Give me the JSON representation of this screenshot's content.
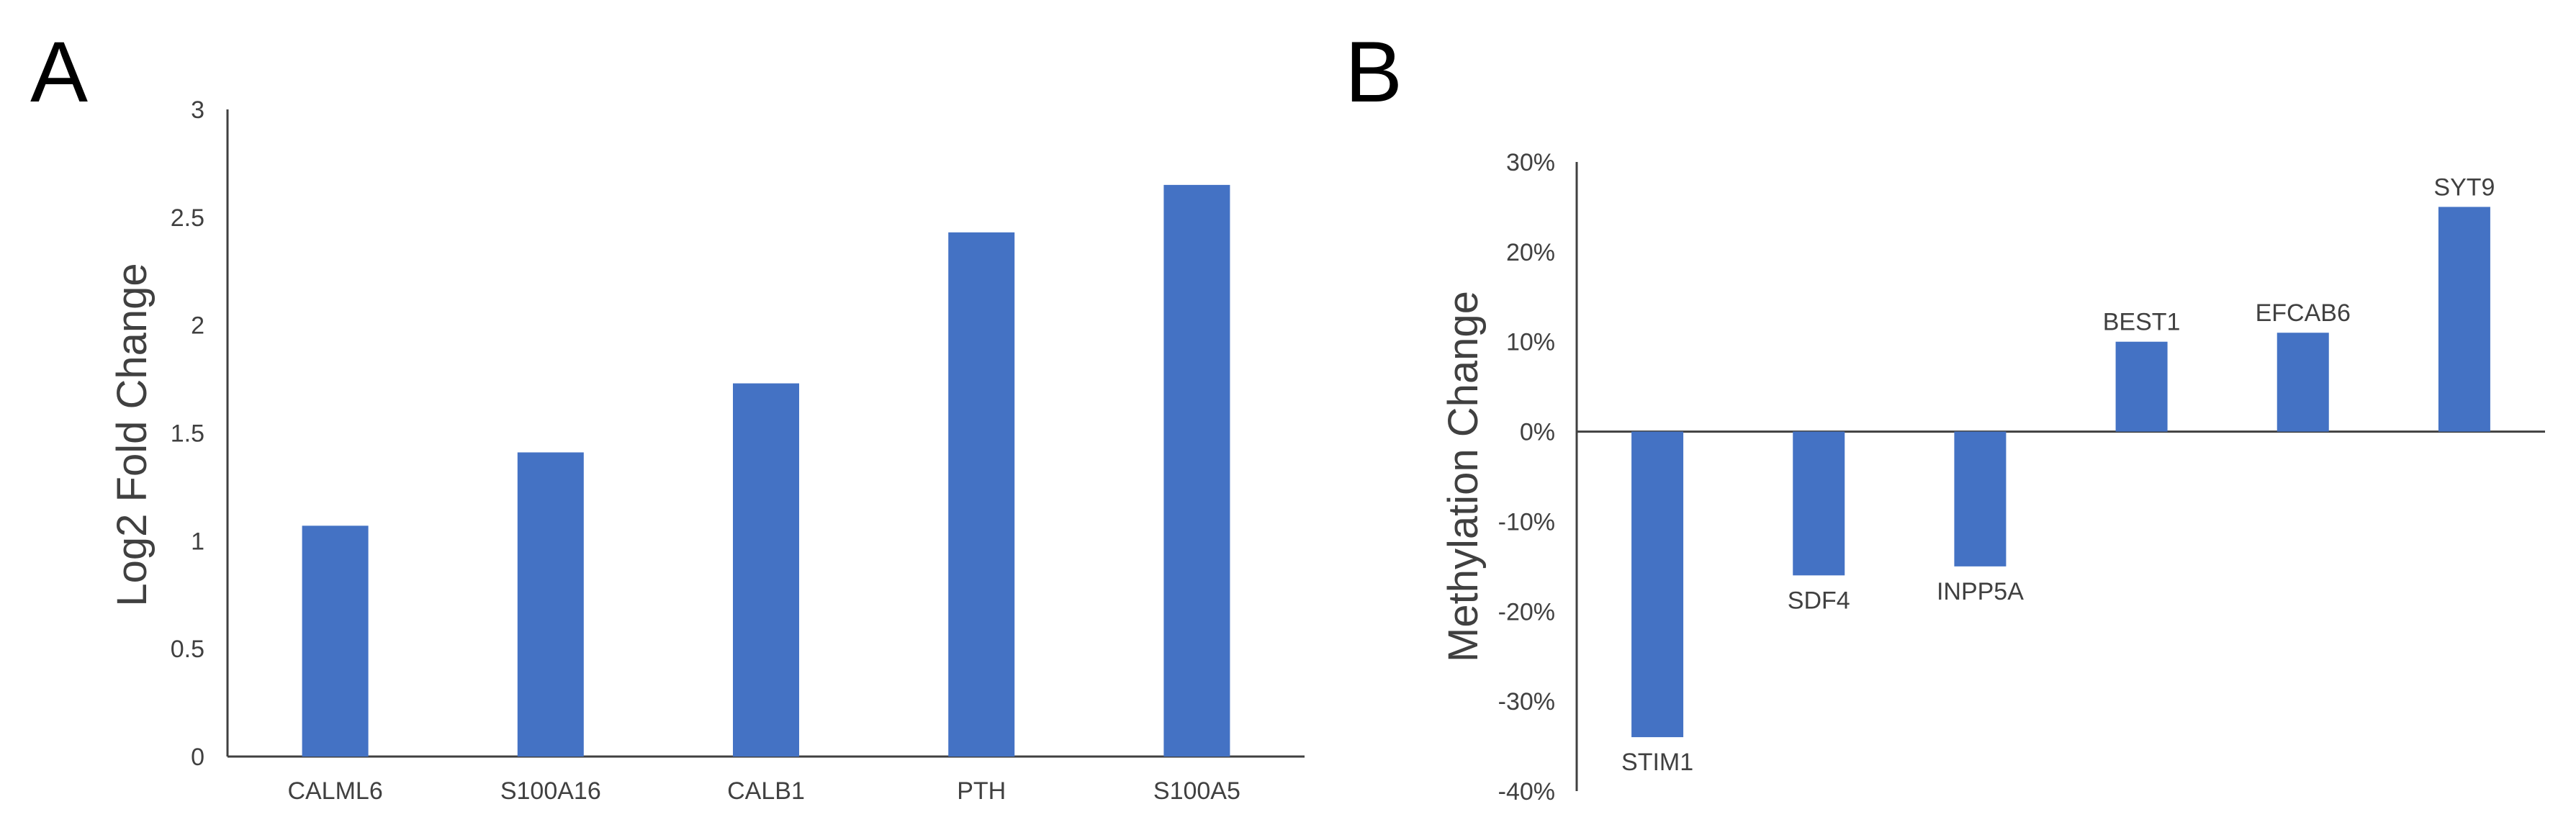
{
  "panels": {
    "a_label": "A",
    "b_label": "B"
  },
  "chart_data": [
    {
      "type": "bar",
      "panel": "A",
      "title": "",
      "xlabel": "",
      "ylabel": "Log2 Fold Change",
      "ylim": [
        0,
        3
      ],
      "yticks": [
        "0",
        "0.5",
        "1",
        "1.5",
        "2",
        "2.5",
        "3"
      ],
      "categories": [
        "CALML6",
        "S100A16",
        "CALB1",
        "PTH",
        "S100A5"
      ],
      "values": [
        1.07,
        1.41,
        1.73,
        2.43,
        2.65
      ],
      "color": "#4472C4"
    },
    {
      "type": "bar",
      "panel": "B",
      "title": "",
      "xlabel": "",
      "ylabel": "Methylation Change",
      "ylim": [
        -40,
        30
      ],
      "yticks": [
        "-40%",
        "-30%",
        "-20%",
        "-10%",
        "0%",
        "10%",
        "20%",
        "30%"
      ],
      "categories": [
        "STIM1",
        "SDF4",
        "INPP5A",
        "BEST1",
        "EFCAB6",
        "SYT9"
      ],
      "values": [
        -34,
        -16,
        -15,
        10,
        11,
        25
      ],
      "color": "#4472C4"
    }
  ]
}
